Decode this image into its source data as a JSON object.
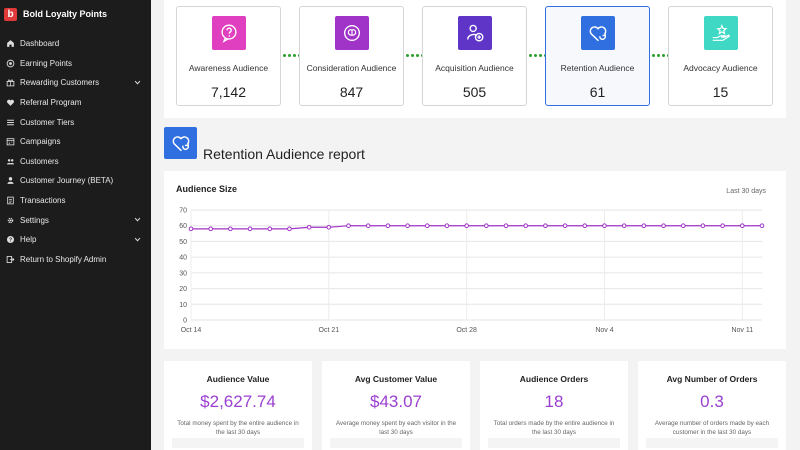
{
  "brand": {
    "name": "Bold Loyalty Points",
    "logo_letter": "b",
    "logo_color": "#e03a3a"
  },
  "sidebar": {
    "items": [
      {
        "label": "Dashboard",
        "icon": "home-icon",
        "expandable": false
      },
      {
        "label": "Earning Points",
        "icon": "coin-icon",
        "expandable": false
      },
      {
        "label": "Rewarding Customers",
        "icon": "gift-icon",
        "expandable": true
      },
      {
        "label": "Referral Program",
        "icon": "heart-icon",
        "expandable": false
      },
      {
        "label": "Customer Tiers",
        "icon": "tiers-icon",
        "expandable": false
      },
      {
        "label": "Campaigns",
        "icon": "calendar-icon",
        "expandable": false
      },
      {
        "label": "Customers",
        "icon": "users-icon",
        "expandable": false
      },
      {
        "label": "Customer Journey (BETA)",
        "icon": "user-icon",
        "expandable": false
      },
      {
        "label": "Transactions",
        "icon": "document-icon",
        "expandable": false
      },
      {
        "label": "Settings",
        "icon": "gear-icon",
        "expandable": true
      },
      {
        "label": "Help",
        "icon": "help-icon",
        "expandable": true
      },
      {
        "label": "Return to Shopify Admin",
        "icon": "exit-icon",
        "expandable": false
      }
    ]
  },
  "funnel": {
    "stages": [
      {
        "label": "Awareness Audience",
        "value": "7,142",
        "icon": "question-bubble-icon",
        "color": "#e040c0",
        "active": false
      },
      {
        "label": "Consideration Audience",
        "value": "847",
        "icon": "brain-icon",
        "color": "#a033c8",
        "active": false
      },
      {
        "label": "Acquisition Audience",
        "value": "505",
        "icon": "user-add-icon",
        "color": "#5f35c8",
        "active": false
      },
      {
        "label": "Retention Audience",
        "value": "61",
        "icon": "heart-refresh-icon",
        "color": "#2f6fe0",
        "active": true
      },
      {
        "label": "Advocacy Audience",
        "value": "15",
        "icon": "hand-star-icon",
        "color": "#3fd8c4",
        "active": false
      }
    ]
  },
  "report": {
    "title": "Retention Audience report",
    "icon_color": "#2f6fe0"
  },
  "chart_data": {
    "type": "line",
    "title": "Audience Size",
    "range_label": "Last 30 days",
    "xlabel": "",
    "ylabel": "",
    "ylim": [
      0,
      70
    ],
    "yticks": [
      0,
      10,
      20,
      30,
      40,
      50,
      60,
      70
    ],
    "x_tick_labels": [
      "Oct 14",
      "Oct 21",
      "Oct 28",
      "Nov 4",
      "Nov 11"
    ],
    "x_tick_index": [
      0,
      7,
      14,
      21,
      28
    ],
    "x": [
      "Oct 14",
      "Oct 15",
      "Oct 16",
      "Oct 17",
      "Oct 18",
      "Oct 19",
      "Oct 20",
      "Oct 21",
      "Oct 22",
      "Oct 23",
      "Oct 24",
      "Oct 25",
      "Oct 26",
      "Oct 27",
      "Oct 28",
      "Oct 29",
      "Oct 30",
      "Oct 31",
      "Nov 1",
      "Nov 2",
      "Nov 3",
      "Nov 4",
      "Nov 5",
      "Nov 6",
      "Nov 7",
      "Nov 8",
      "Nov 9",
      "Nov 10",
      "Nov 11",
      "Nov 12"
    ],
    "series": [
      {
        "values": [
          58,
          58,
          58,
          58,
          58,
          58,
          59,
          59,
          60,
          60,
          60,
          60,
          60,
          60,
          60,
          60,
          60,
          60,
          60,
          60,
          60,
          60,
          60,
          60,
          60,
          60,
          60,
          60,
          60,
          60
        ],
        "color": "#a033c8"
      }
    ],
    "grid": true
  },
  "stats": [
    {
      "label": "Audience Value",
      "value": "$2,627.74",
      "desc": "Total money spent by the entire audience in the last 30 days"
    },
    {
      "label": "Avg Customer Value",
      "value": "$43.07",
      "desc": "Average money spent by each visitor in the last 30 days"
    },
    {
      "label": "Audience Orders",
      "value": "18",
      "desc": "Total orders made by the entire audience in the last 30 days"
    },
    {
      "label": "Avg Number of Orders",
      "value": "0.3",
      "desc": "Average number of orders made by each customer in the last 30 days"
    }
  ],
  "colors": {
    "accent": "#9b3fd1",
    "active_border": "#2f6fe0",
    "sidebar_bg": "#1c1c1c",
    "connector": "#2ca02c"
  }
}
